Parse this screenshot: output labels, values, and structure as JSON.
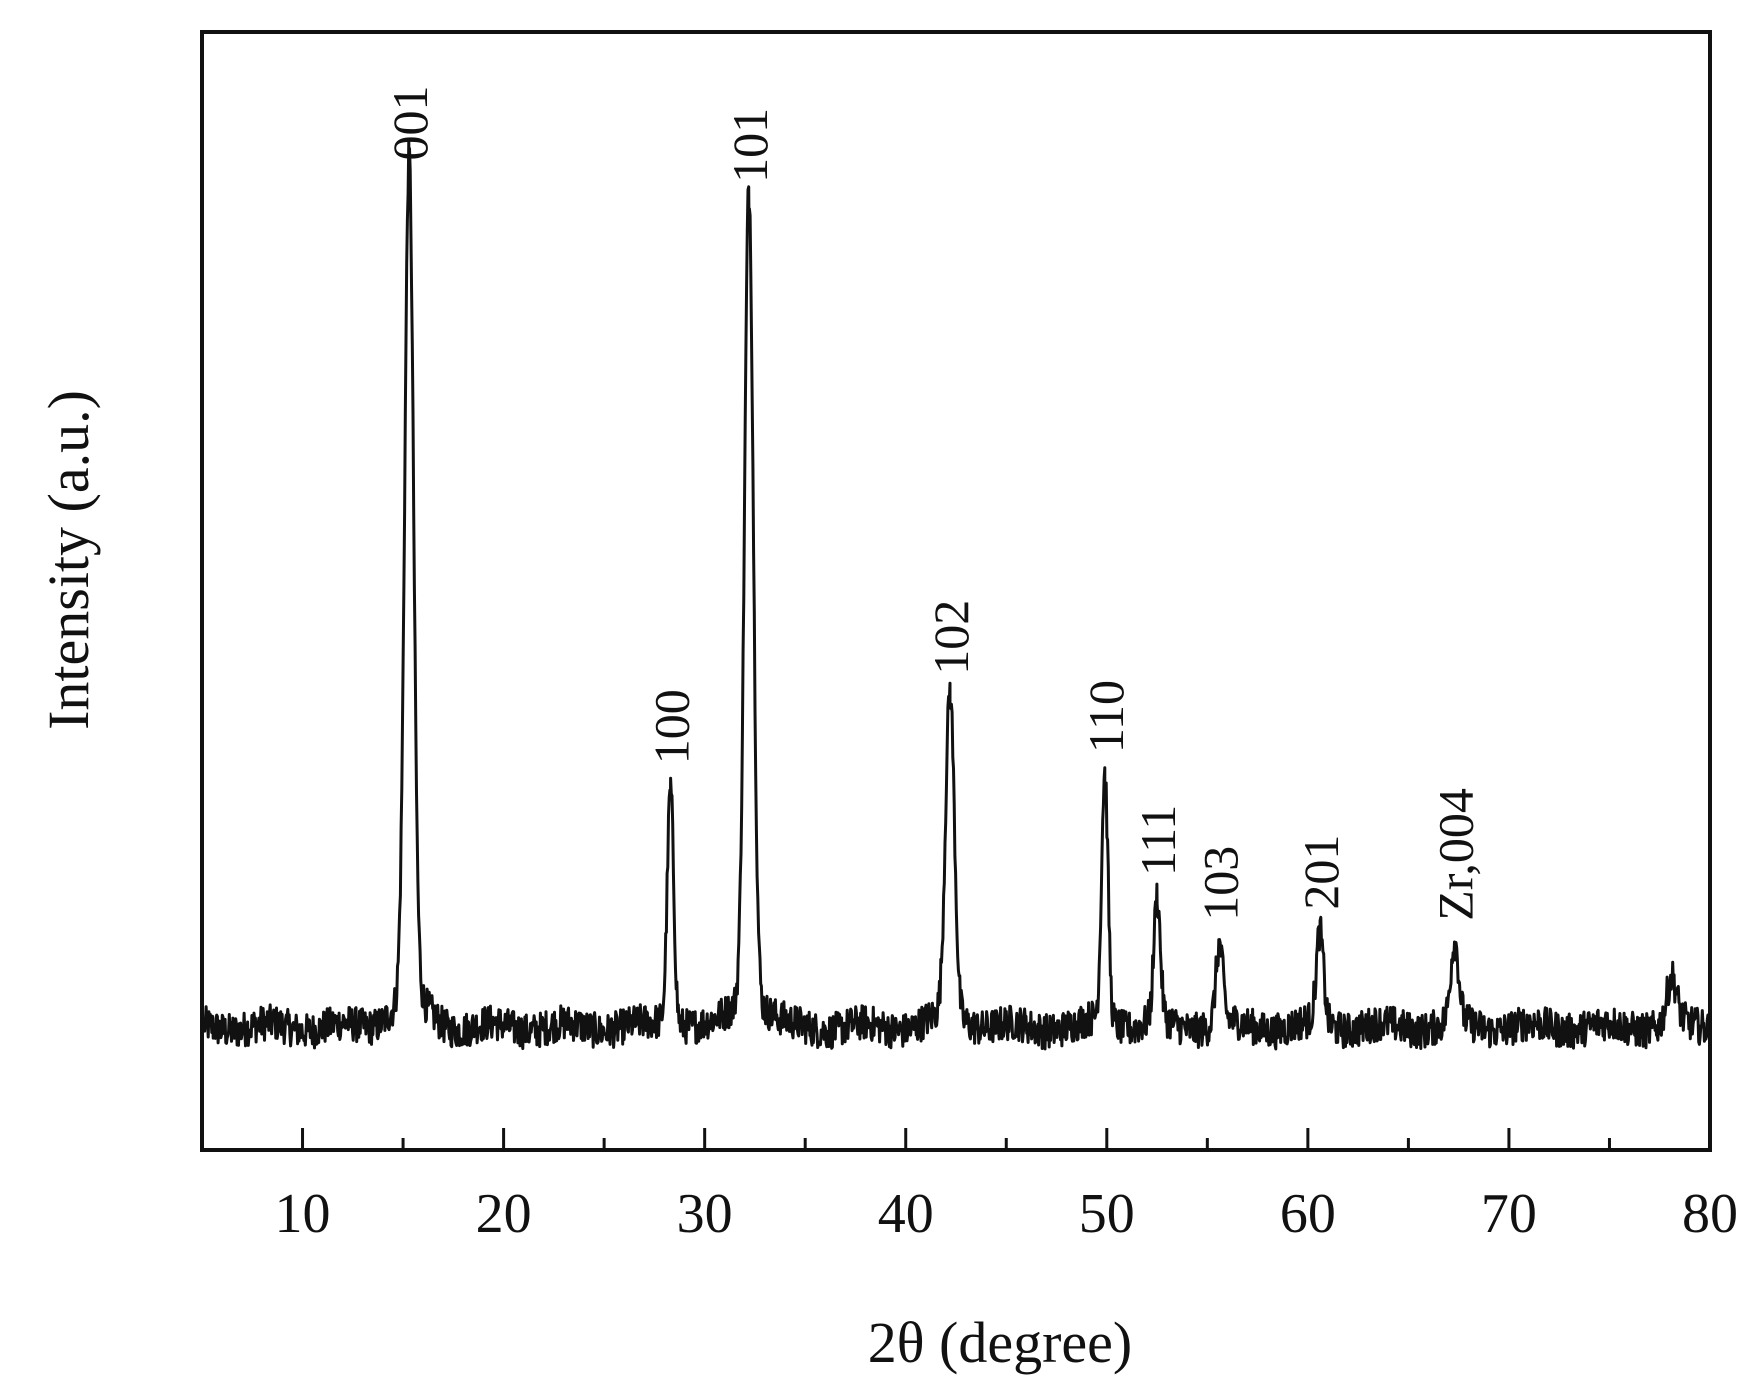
{
  "chart_data": {
    "type": "line",
    "title": "",
    "xlabel": "2θ (degree)",
    "ylabel": "Intensity (a.u.)",
    "xlim": [
      5,
      80
    ],
    "ylim": [
      0,
      100
    ],
    "x_ticks": [
      10,
      20,
      30,
      40,
      50,
      60,
      70,
      80
    ],
    "x_tick_labels": [
      "10",
      "20",
      "30",
      "40",
      "50",
      "60",
      "70",
      "80"
    ],
    "x_minor_ticks": [
      15,
      25,
      35,
      45,
      55,
      65,
      75
    ],
    "y_ticks_shown": false,
    "grid": false,
    "legend": "none",
    "line_color": "#111111",
    "baseline": 11,
    "series": [
      {
        "peaks": [
          {
            "x": 15.3,
            "y": 86,
            "width": 0.22,
            "label": "001"
          },
          {
            "x": 28.3,
            "y": 32,
            "width": 0.16,
            "label": "100"
          },
          {
            "x": 32.2,
            "y": 84,
            "width": 0.22,
            "label": "101"
          },
          {
            "x": 42.2,
            "y": 40,
            "width": 0.22,
            "label": "102"
          },
          {
            "x": 49.9,
            "y": 33,
            "width": 0.16,
            "label": "110"
          },
          {
            "x": 52.5,
            "y": 22,
            "width": 0.16,
            "label": "111"
          },
          {
            "x": 55.6,
            "y": 18,
            "width": 0.18,
            "label": "103"
          },
          {
            "x": 60.6,
            "y": 19,
            "width": 0.18,
            "label": "201"
          },
          {
            "x": 67.3,
            "y": 18,
            "width": 0.2,
            "label": "Zr,004"
          },
          {
            "x": 78.1,
            "y": 15,
            "width": 0.25,
            "label": ""
          }
        ]
      }
    ]
  }
}
